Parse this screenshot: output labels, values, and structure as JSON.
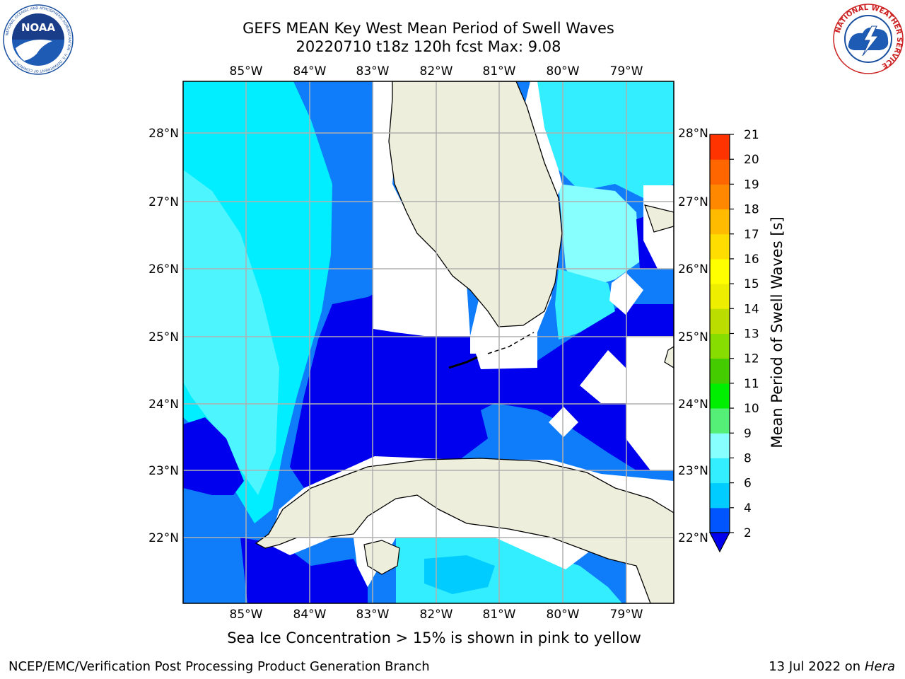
{
  "header": {
    "title_line1": "GEFS MEAN Key West Mean Period of Swell Waves",
    "title_line2": "20220710 t18z 120h fcst   Max: 9.08"
  },
  "logos": {
    "left": "noaa-logo",
    "left_text": "NOAA",
    "left_ring_text": "NATIONAL OCEANIC AND ATMOSPHERIC ADMINISTRATION · U.S. DEPARTMENT OF COMMERCE",
    "right": "nws-logo",
    "right_ring_text": "NATIONAL WEATHER SERVICE"
  },
  "map": {
    "lon_labels": [
      "85°W",
      "84°W",
      "83°W",
      "82°W",
      "81°W",
      "80°W",
      "79°W"
    ],
    "lat_labels": [
      "28°N",
      "27°N",
      "26°N",
      "25°N",
      "24°N",
      "23°N",
      "22°N"
    ]
  },
  "colorbar": {
    "label": "Mean Period of Swell Waves [s]",
    "ticks": [
      "2",
      "4",
      "6",
      "8",
      "9",
      "10",
      "11",
      "12",
      "13",
      "14",
      "15",
      "16",
      "17",
      "18",
      "19",
      "20",
      "21"
    ],
    "colors": [
      "#0055ff",
      "#00ccff",
      "#33eeff",
      "#88ffff",
      "#55ee77",
      "#00ee00",
      "#44cc00",
      "#88dd00",
      "#bbdd00",
      "#eeee00",
      "#ffff00",
      "#ffdd00",
      "#ffbb00",
      "#ff8800",
      "#ff6600",
      "#ff3300",
      "#ff0000"
    ],
    "underflow_color": "#0000ee"
  },
  "footer": {
    "note": "Sea Ice Concentration > 15% is shown in pink to yellow",
    "left": "NCEP/EMC/Verification Post Processing Product Generation Branch",
    "date": "13 Jul 2022 on ",
    "host": "Hera"
  }
}
